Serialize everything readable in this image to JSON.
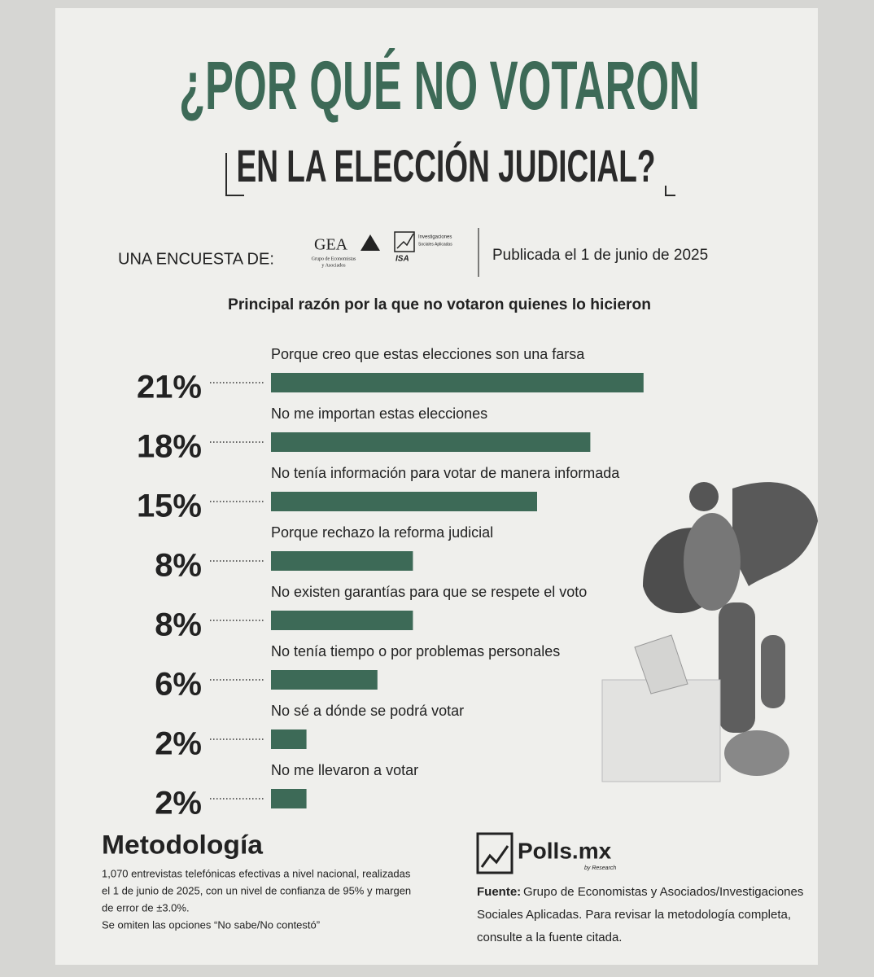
{
  "header": {
    "title_line1": "¿POR QUÉ NO VOTARON",
    "title_line2": "EN LA ELECCIÓN JUDICIAL?",
    "survey_by": "UNA ENCUESTA DE:",
    "logo_gea": "GEA",
    "logo_gea_sub1": "Grupo de Economistas",
    "logo_gea_sub2": "y Asociados",
    "logo_isa": "ISA",
    "logo_isa_sub1": "Investigaciones",
    "logo_isa_sub2": "Sociales Aplicadas",
    "published": "Publicada el 1 de junio de 2025"
  },
  "chart_data": {
    "type": "bar",
    "orientation": "horizontal",
    "subtitle": "Principal razón por la que no votaron quienes lo hicieron",
    "categories": [
      "Porque creo que estas elecciones son una farsa",
      "No me importan estas elecciones",
      "No tenía información para votar de manera informada",
      "Porque rechazo la reforma judicial",
      "No existen garantías para que se respete el voto",
      "No tenía tiempo o por problemas personales",
      "No sé a dónde se podrá votar",
      "No me llevaron a votar"
    ],
    "values": [
      21,
      18,
      15,
      8,
      8,
      6,
      2,
      2
    ],
    "value_labels": [
      "21%",
      "18%",
      "15%",
      "8%",
      "8%",
      "6%",
      "2%",
      "2%"
    ],
    "color": "#3d6a57"
  },
  "footer": {
    "method_title": "Metodología",
    "method_lines": [
      "1,070 entrevistas telefónicas efectivas a nivel nacional, realizadas",
      "el 1 de junio de 2025, con un nivel de confianza de 95% y margen",
      "de error de ±3.0%.",
      "Se omiten las opciones “No sabe/No contestó”"
    ],
    "brand": "Polls.mx",
    "brand_sub": "by Research",
    "source_label": "Fuente:",
    "source_lines": [
      "Grupo de Economistas y Asociados/Investigaciones",
      "Sociales Aplicadas. Para revisar la metodología completa,",
      "consulte a la fuente citada."
    ]
  }
}
